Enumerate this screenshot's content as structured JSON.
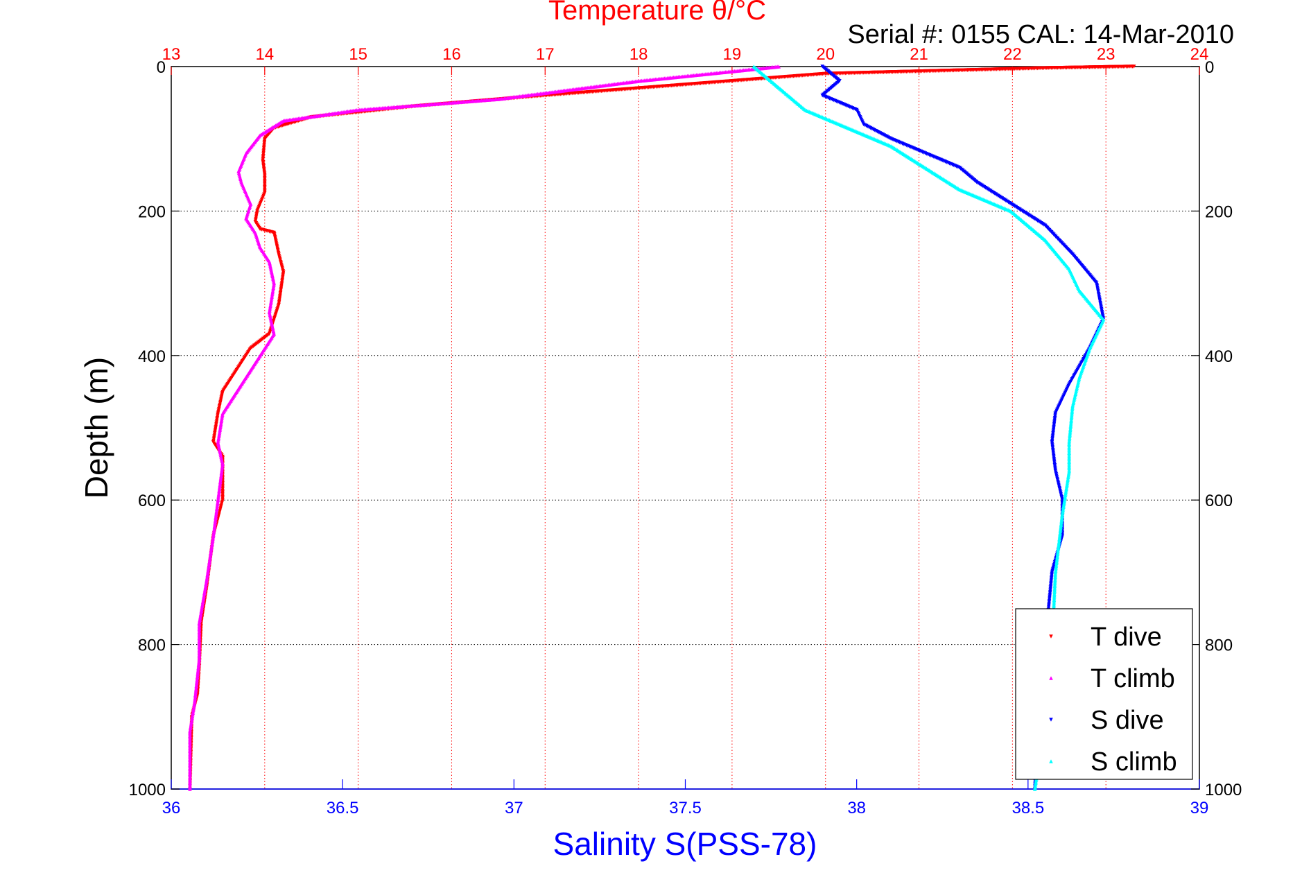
{
  "header": {
    "title": "Temperature θ/°C",
    "serial": "Serial #: 0155  CAL: 14-Mar-2010"
  },
  "colors": {
    "t_dive": "#ff0000",
    "t_climb": "#ff00ff",
    "s_dive": "#0000ff",
    "s_climb": "#00ffff",
    "temp_axis": "#ff0000",
    "sal_axis": "#0000ff"
  },
  "chart_data": {
    "type": "scatter",
    "title": "Temperature θ/°C",
    "xlabel": "Salinity S(PSS-78)",
    "ylabel": "Depth (m)",
    "ylim": [
      0,
      1000
    ],
    "y_reversed": true,
    "x_temp_lim": [
      13,
      24
    ],
    "x_sal_lim": [
      36,
      39
    ],
    "temp_ticks": [
      "13",
      "14",
      "15",
      "16",
      "17",
      "18",
      "19",
      "20",
      "21",
      "22",
      "23",
      "24"
    ],
    "sal_ticks": [
      "36",
      "36.5",
      "37",
      "37.5",
      "38",
      "38.5",
      "39"
    ],
    "depth_ticks_left": [
      "0",
      "200",
      "400",
      "600",
      "800",
      "1000"
    ],
    "depth_ticks_right": [
      "0",
      "200",
      "400",
      "600",
      "800",
      "1000"
    ],
    "grid": true,
    "legend_position": "bottom-right",
    "series": [
      {
        "name": "T dive",
        "axis": "temperature",
        "x": [
          23.3,
          22.4,
          20.0,
          18.5,
          17.0,
          15.6,
          14.5,
          14.1,
          14.0,
          13.98,
          14.0,
          14.0,
          13.92,
          13.9,
          13.95,
          14.1,
          14.15,
          14.2,
          14.15,
          14.05,
          13.85,
          13.7,
          13.55,
          13.5,
          13.45,
          13.55,
          13.55,
          13.45,
          13.38,
          13.32,
          13.3,
          13.28,
          13.22,
          13.2
        ],
        "y": [
          0,
          2,
          10,
          25,
          40,
          55,
          70,
          85,
          100,
          130,
          150,
          175,
          200,
          215,
          225,
          230,
          260,
          285,
          330,
          370,
          390,
          420,
          450,
          480,
          520,
          540,
          600,
          650,
          720,
          770,
          830,
          870,
          900,
          1000
        ]
      },
      {
        "name": "T climb",
        "axis": "temperature",
        "x": [
          19.5,
          18.0,
          16.5,
          15.0,
          14.2,
          13.95,
          13.8,
          13.72,
          13.75,
          13.85,
          13.8,
          13.9,
          13.95,
          14.05,
          14.1,
          14.05,
          14.1,
          13.95,
          13.75,
          13.55,
          13.5,
          13.55,
          13.5,
          13.45,
          13.38,
          13.3,
          13.3,
          13.25,
          13.2,
          13.2
        ],
        "y": [
          0,
          20,
          45,
          60,
          75,
          95,
          120,
          145,
          160,
          190,
          210,
          230,
          250,
          270,
          300,
          340,
          370,
          400,
          440,
          480,
          520,
          550,
          600,
          650,
          710,
          770,
          820,
          880,
          920,
          1000
        ]
      },
      {
        "name": "S dive",
        "axis": "salinity",
        "x": [
          37.9,
          37.95,
          37.9,
          38.0,
          38.02,
          38.1,
          38.2,
          38.3,
          38.35,
          38.45,
          38.55,
          38.63,
          38.7,
          38.72,
          38.68,
          38.62,
          38.58,
          38.57,
          38.58,
          38.6,
          38.6,
          38.57,
          38.55,
          38.53,
          38.52
        ],
        "y": [
          0,
          20,
          40,
          60,
          80,
          100,
          120,
          140,
          160,
          190,
          220,
          260,
          300,
          350,
          390,
          440,
          480,
          520,
          560,
          600,
          650,
          700,
          800,
          900,
          1000
        ]
      },
      {
        "name": "S climb",
        "axis": "salinity",
        "x": [
          37.7,
          37.75,
          37.8,
          37.85,
          37.95,
          38.1,
          38.2,
          38.3,
          38.45,
          38.55,
          38.62,
          38.65,
          38.72,
          38.68,
          38.65,
          38.63,
          38.62,
          38.62,
          38.6,
          38.58,
          38.57,
          38.55,
          38.52
        ],
        "y": [
          0,
          20,
          40,
          60,
          80,
          110,
          140,
          170,
          200,
          240,
          280,
          310,
          350,
          390,
          430,
          470,
          520,
          560,
          620,
          700,
          800,
          900,
          1000
        ]
      }
    ]
  }
}
